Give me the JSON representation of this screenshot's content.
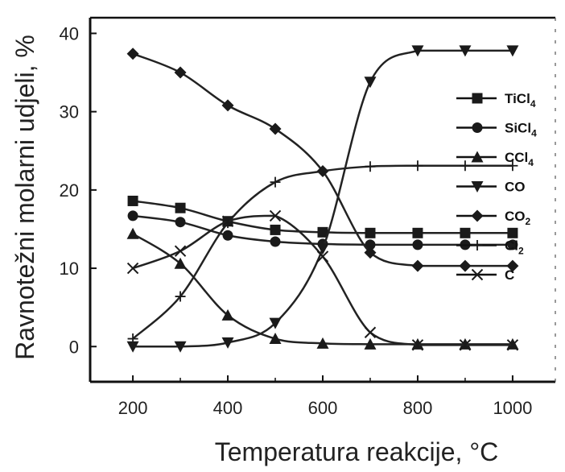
{
  "chart_data": {
    "type": "line",
    "xlabel": "Temperatura reakcije, ",
    "xlabel_unit": "°C",
    "ylabel": "Ravnotežni molarni udjeli, %",
    "xlim": [
      110,
      1090
    ],
    "ylim": [
      -4.5,
      42
    ],
    "x_ticks": [
      200,
      400,
      600,
      800,
      1000
    ],
    "y_ticks": [
      0,
      10,
      20,
      30,
      40
    ],
    "x_tick_labels": [
      "200",
      "400",
      "600",
      "800",
      "1000"
    ],
    "y_tick_labels": [
      "0",
      "10",
      "20",
      "30",
      "40"
    ],
    "grid": false,
    "legend_position": "right",
    "x": [
      200,
      300,
      400,
      500,
      600,
      700,
      800,
      900,
      1000
    ],
    "series": [
      {
        "name": "TiCl",
        "sub": "4",
        "marker": "square",
        "values": [
          18.6,
          17.7,
          16.0,
          14.9,
          14.6,
          14.5,
          14.5,
          14.5,
          14.5
        ]
      },
      {
        "name": "SiCl",
        "sub": "4",
        "marker": "circle",
        "values": [
          16.7,
          15.9,
          14.2,
          13.4,
          13.1,
          13.0,
          13.0,
          13.0,
          13.0
        ]
      },
      {
        "name": "CCl",
        "sub": "4",
        "marker": "triangle-up",
        "values": [
          14.4,
          10.6,
          4.0,
          1.0,
          0.4,
          0.3,
          0.3,
          0.3,
          0.3
        ]
      },
      {
        "name": "CO",
        "sub": "",
        "marker": "triangle-down",
        "values": [
          0.0,
          0.0,
          0.5,
          3.0,
          12.5,
          33.8,
          37.8,
          37.8,
          37.8
        ]
      },
      {
        "name": "CO",
        "sub": "2",
        "marker": "diamond",
        "values": [
          37.4,
          35.0,
          30.8,
          27.8,
          22.4,
          12.0,
          10.3,
          10.3,
          10.3
        ]
      },
      {
        "name": "Cl",
        "sub": "2",
        "marker": "plus",
        "values": [
          1.0,
          6.4,
          15.8,
          21.0,
          22.4,
          23.0,
          23.1,
          23.1,
          23.1
        ]
      },
      {
        "name": "C",
        "sub": "",
        "marker": "x",
        "values": [
          10.0,
          12.2,
          16.0,
          16.7,
          11.5,
          1.8,
          0.2,
          0.2,
          0.2
        ]
      }
    ]
  }
}
